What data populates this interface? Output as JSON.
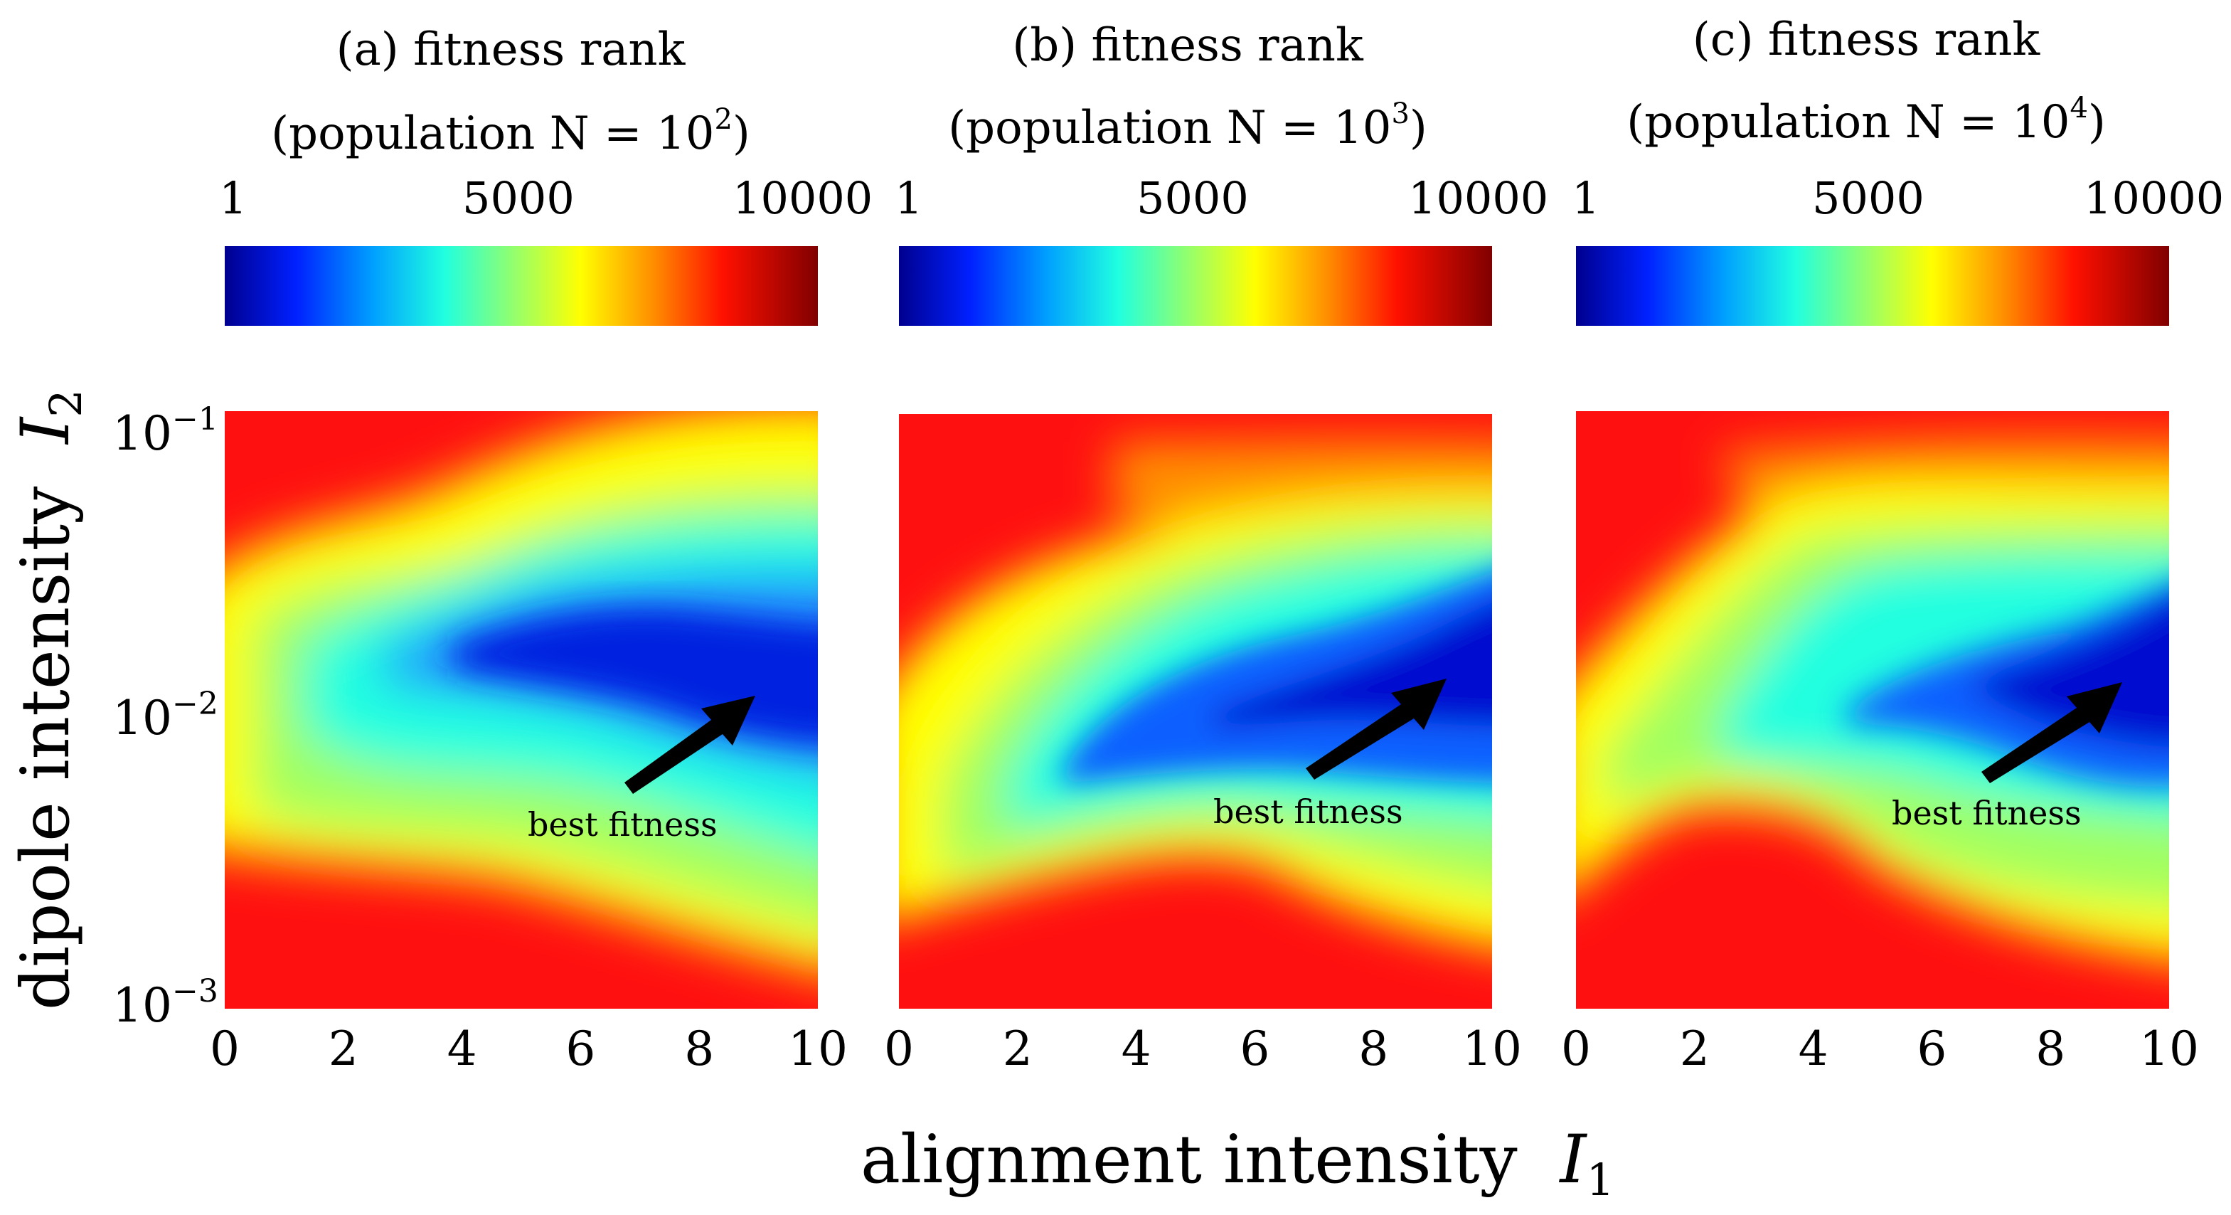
{
  "chart_data": [
    {
      "type": "heatmap",
      "title": "(a) fitness rank",
      "subtitle": "(population  N = 10",
      "subtitle_exp": "2",
      "subtitle_close": ")",
      "colorbar": {
        "ticks": [
          "1",
          "5000",
          "10000"
        ],
        "range": [
          1,
          10000
        ],
        "colormap": "jet"
      },
      "x": [
        0,
        2,
        4,
        6,
        8,
        10
      ],
      "xlabel": "alignment intensity",
      "ylabel": "dipole intensity",
      "ylim": [
        0.001,
        0.1
      ],
      "yscale": "log",
      "annotation": {
        "text": "best fitness",
        "points_to": {
          "x": 9.2,
          "y": 0.012
        }
      }
    },
    {
      "type": "heatmap",
      "title": "(b) fitness rank",
      "subtitle": "(population  N = 10",
      "subtitle_exp": "3",
      "subtitle_close": ")",
      "colorbar": {
        "ticks": [
          "1",
          "5000",
          "10000"
        ],
        "range": [
          1,
          10000
        ],
        "colormap": "jet"
      },
      "x": [
        0,
        2,
        4,
        6,
        8,
        10
      ],
      "xlabel": "alignment intensity",
      "ylim": [
        0.001,
        0.1
      ],
      "yscale": "log",
      "annotation": {
        "text": "best fitness",
        "points_to": {
          "x": 9.3,
          "y": 0.013
        }
      }
    },
    {
      "type": "heatmap",
      "title": "(c) fitness rank",
      "subtitle": "(population  N = 10",
      "subtitle_exp": "4",
      "subtitle_close": ")",
      "colorbar": {
        "ticks": [
          "1",
          "5000",
          "10000"
        ],
        "range": [
          1,
          10000
        ],
        "colormap": "jet"
      },
      "x": [
        0,
        2,
        4,
        6,
        8,
        10
      ],
      "xlabel": "alignment intensity",
      "ylim": [
        0.001,
        0.1
      ],
      "yscale": "log",
      "annotation": {
        "text": "best fitness",
        "points_to": {
          "x": 9.5,
          "y": 0.013
        }
      }
    }
  ],
  "axes": {
    "ytick_base": "10",
    "ytick_exps": [
      "−1",
      "−2",
      "−3"
    ],
    "xlabel_text": "alignment intensity",
    "xlabel_symbol": "I",
    "xlabel_sub": "1",
    "ylabel_text": "dipole intensity",
    "ylabel_symbol": "I",
    "ylabel_sub": "2"
  }
}
